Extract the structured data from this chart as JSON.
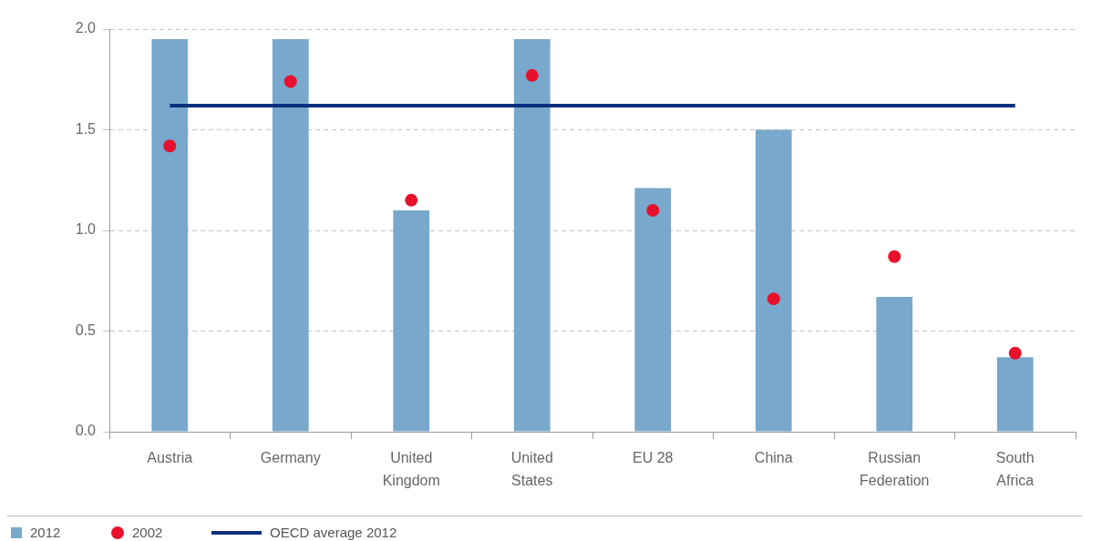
{
  "chart_data": {
    "type": "bar",
    "categories": [
      "Austria",
      "Germany",
      "United Kingdom",
      "United States",
      "EU 28",
      "China",
      "Russian Federation",
      "South Africa"
    ],
    "series": [
      {
        "name": "2012",
        "color": "#78a8cb",
        "values": [
          1.95,
          1.95,
          1.1,
          1.95,
          1.21,
          1.5,
          0.67,
          0.37
        ]
      },
      {
        "name": "2002",
        "type": "scatter",
        "color": "#e8112d",
        "x": [
          "Austria",
          "Germany",
          "United Kingdom",
          "United States",
          "EU 28",
          "China",
          "Russian Federation",
          "South Africa"
        ],
        "values": [
          1.42,
          1.74,
          1.15,
          1.77,
          1.1,
          0.66,
          0.87,
          0.39
        ]
      }
    ],
    "ref_lines": [
      {
        "axis": "y",
        "value": 1.62,
        "label": "OECD average 2012",
        "color": "#0b2f80"
      }
    ],
    "ylim": [
      0,
      2
    ],
    "yticks": [
      {
        "value": 0,
        "label": "0.0"
      },
      {
        "value": 0.5,
        "label": "0.5"
      },
      {
        "value": 1,
        "label": "1.0"
      },
      {
        "value": 1.5,
        "label": "1.5"
      },
      {
        "value": 2,
        "label": "2.0"
      }
    ],
    "grid": "y",
    "legend": "bottom left",
    "marker": "circle"
  }
}
